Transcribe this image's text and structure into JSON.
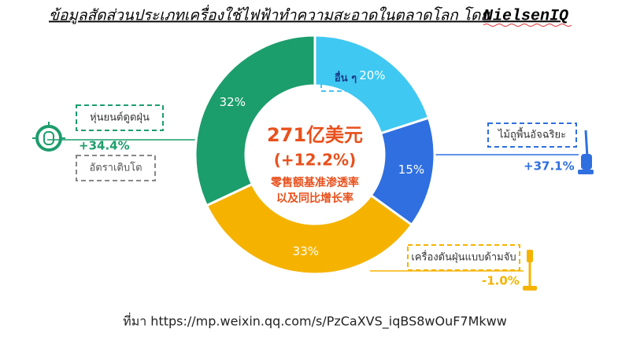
{
  "chart_data": {
    "type": "pie",
    "donut": true,
    "title": "ข้อมูลสัดส่วนประเภทเครื่องใช้ไฟฟ้าทำความสะอาดในตลาดโลก โดย",
    "title_brand": "NielsenIQ",
    "categories": [
      "อื่น ๆ",
      "ไม้ถูพื้นอัจฉริยะ",
      "เครื่องดันฝุ่นแบบด้ามจับ",
      "หุ่นยนต์ดูดฝุ่น"
    ],
    "values": [
      20,
      15,
      33,
      32
    ],
    "value_labels": [
      "20%",
      "15%",
      "33%",
      "32%"
    ],
    "colors": [
      "#3fc8f2",
      "#2f6fe0",
      "#f5b300",
      "#1c9d6c"
    ],
    "growth": [
      null,
      "+37.1%",
      "-1.0%",
      "+34.4%"
    ],
    "growth_caption": "อัตราเติบโต",
    "center_text": [
      "271亿美元",
      "(+12.2%)",
      "零售额基准渗透率",
      "以及同比增长率"
    ],
    "source": "ที่มา https://mp.weixin.qq.com/s/PzCaXVS_iqBS8wOuF7Mkww"
  }
}
